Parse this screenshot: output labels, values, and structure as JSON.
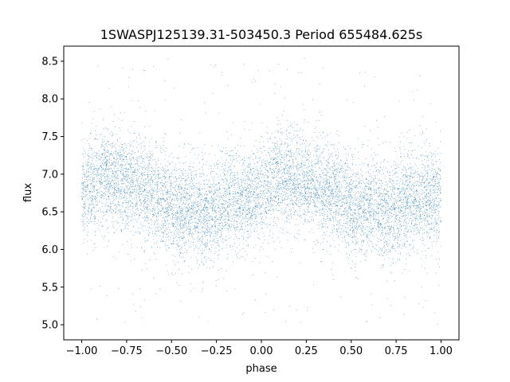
{
  "chart_data": {
    "type": "scatter",
    "title": "1SWASPJ125139.31-503450.3 Period 655484.625s",
    "xlabel": "phase",
    "ylabel": "flux",
    "xlim": [
      -1.1,
      1.1
    ],
    "ylim": [
      4.8,
      8.7
    ],
    "xticks": [
      -1.0,
      -0.75,
      -0.5,
      -0.25,
      0.0,
      0.25,
      0.5,
      0.75,
      1.0
    ],
    "xtick_labels": [
      "−1.00",
      "−0.75",
      "−0.50",
      "−0.25",
      "0.00",
      "0.25",
      "0.50",
      "0.75",
      "1.00"
    ],
    "yticks": [
      5.0,
      5.5,
      6.0,
      6.5,
      7.0,
      7.5,
      8.0,
      8.5
    ],
    "ytick_labels": [
      "5.0",
      "5.5",
      "6.0",
      "6.5",
      "7.0",
      "7.5",
      "8.0",
      "8.5"
    ],
    "marker_color": "#1f77b4",
    "grid": false,
    "series": [
      {
        "x_range": [
          -1.0,
          1.0
        ],
        "profile_phase": [
          0.0,
          0.1,
          0.22,
          0.35,
          0.47,
          0.52,
          0.6,
          0.7,
          0.8,
          0.9,
          1.0
        ],
        "profile_flux": [
          6.75,
          6.95,
          6.92,
          6.78,
          6.68,
          6.52,
          6.58,
          6.45,
          6.62,
          6.68,
          6.75
        ],
        "flux_spread": 0.33,
        "outlier_range": [
          5.0,
          8.55
        ]
      }
    ]
  }
}
